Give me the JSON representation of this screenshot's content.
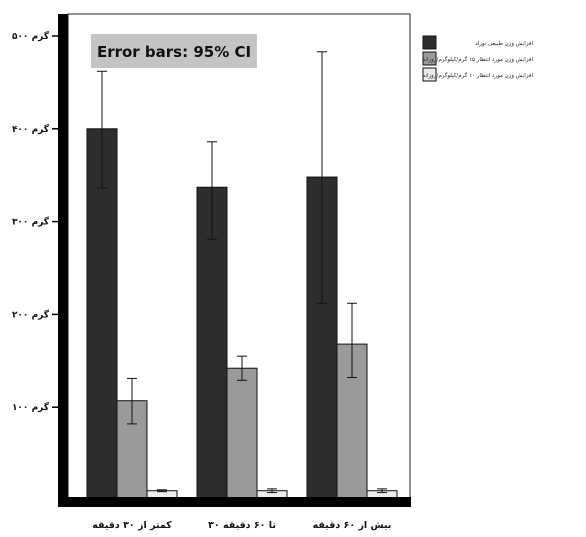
{
  "chart_data": {
    "type": "bar",
    "annotation": "Error bars: 95% CI",
    "categories": [
      "کمتر از ۳۰ دقیقه",
      "۳۰ تا ۶۰ دقیقه",
      "بیش از ۶۰ دقیقه"
    ],
    "y_tick_labels": [
      "۱۰۰ گرم",
      "۲۰۰ گرم",
      "۳۰۰ گرم",
      "۴۰۰ گرم",
      "۵۰۰ گرم"
    ],
    "y_ticks": [
      100,
      200,
      300,
      400,
      500
    ],
    "ylim": [
      0,
      520
    ],
    "series": [
      {
        "name": "افزایش وزن طبیعی نوزاد",
        "color": "#2d2d2d",
        "values": [
          400,
          337,
          348
        ],
        "ci_low": [
          336,
          281,
          212
        ],
        "ci_high": [
          462,
          386,
          483
        ]
      },
      {
        "name": "افزایش وزن مورد انتظار ۱۵ گرم/کیلوگرم/روزانه",
        "color": "#9a9a9a",
        "values": [
          107,
          142,
          168
        ],
        "ci_low": [
          82,
          129,
          132
        ],
        "ci_high": [
          131,
          155,
          212
        ]
      },
      {
        "name": "افزایش وزن مورد انتظار ۱۰ گرم/کیلوگرم/روزانه",
        "color": "#ececec",
        "values": [
          10,
          10,
          10
        ],
        "ci_low": [
          9,
          8,
          8
        ],
        "ci_high": [
          11,
          12,
          12
        ]
      }
    ],
    "grid": false,
    "legend_position": "top-right"
  }
}
